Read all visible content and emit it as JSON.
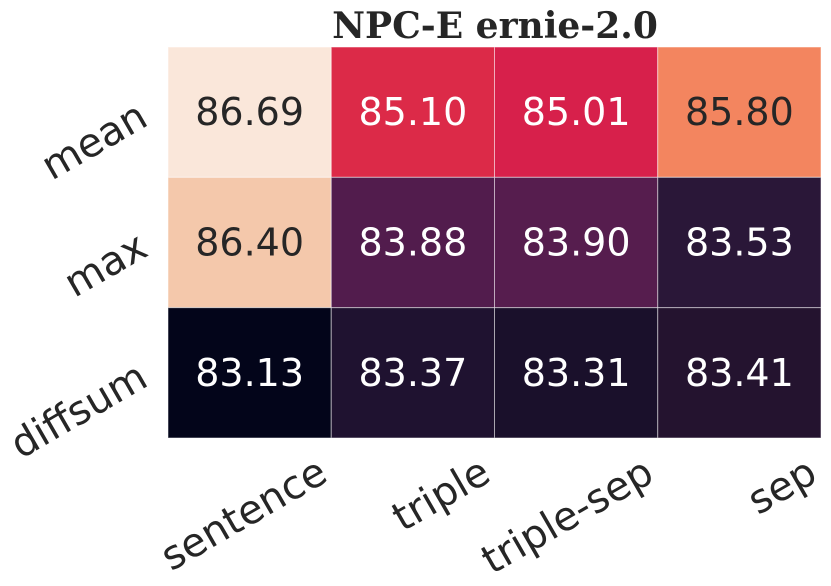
{
  "chart_data": {
    "type": "heatmap",
    "title": "NPC-E  ernie-2.0",
    "categories": [
      "sentence",
      "triple",
      "triple-sep",
      "sep"
    ],
    "rows": [
      "mean",
      "max",
      "diffsum"
    ],
    "values": [
      [
        86.69,
        85.1,
        85.01,
        85.8
      ],
      [
        86.4,
        83.88,
        83.9,
        83.53
      ],
      [
        83.13,
        83.37,
        83.31,
        83.41
      ]
    ],
    "value_labels": [
      [
        "86.69",
        "85.10",
        "85.01",
        "85.80"
      ],
      [
        "86.40",
        "83.88",
        "83.90",
        "83.53"
      ],
      [
        "83.13",
        "83.37",
        "83.31",
        "83.41"
      ]
    ],
    "colors": [
      [
        "#fae7da",
        "#dc2a48",
        "#d7204b",
        "#f3855f"
      ],
      [
        "#f4c8ab",
        "#521c4d",
        "#561d4e",
        "#2a1738"
      ],
      [
        "#03051a",
        "#1f1230",
        "#1a102b",
        "#24132f"
      ]
    ]
  }
}
